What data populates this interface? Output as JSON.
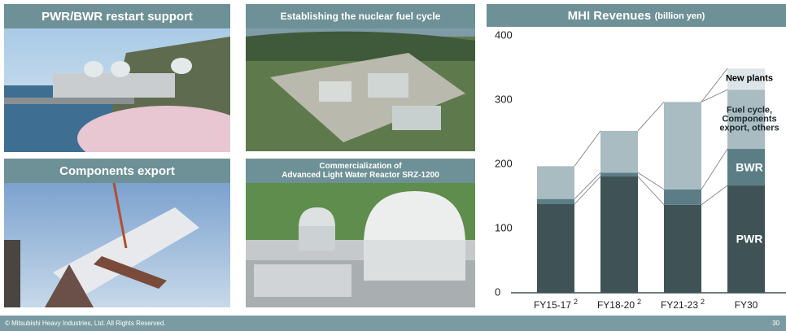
{
  "panels": [
    {
      "title": [
        "PWR/BWR restart support"
      ]
    },
    {
      "title": [
        "Establishing the nuclear fuel cycle"
      ]
    },
    {
      "title": [
        "Components export"
      ]
    },
    {
      "title": [
        "Commercialization of",
        "Advanced Light Water Reactor SRZ-1200"
      ]
    }
  ],
  "footer": {
    "copyright": "© Mitsubishi Heavy Industries, Ltd.  All Rights Reserved.",
    "page": "30"
  },
  "chart_data": {
    "type": "bar",
    "stacked": true,
    "title": "MHI Revenues",
    "subtitle": "(billion yen)",
    "categories": [
      "FY15-17",
      "FY18-20",
      "FY21-23",
      "FY30"
    ],
    "category_notes": [
      "2",
      "2",
      "2",
      null
    ],
    "series": [
      {
        "name": "PWR",
        "color": "#3f5357",
        "label_color": "#ffffff",
        "values": [
          138,
          181,
          137,
          167
        ]
      },
      {
        "name": "BWR",
        "color": "#5b7e86",
        "label_color": "#ffffff",
        "values": [
          8,
          6,
          24,
          57
        ]
      },
      {
        "name": "Fuel cycle, Components export, others",
        "color": "#a9bcc2",
        "label_color": "#1c2a2d",
        "values": [
          51,
          65,
          136,
          92
        ]
      },
      {
        "name": "New plants",
        "color": "#dde5e8",
        "label_color": "#000000",
        "values": [
          null,
          null,
          null,
          33
        ]
      }
    ],
    "ylim": [
      0,
      400
    ],
    "yticks": [
      0,
      100,
      200,
      300,
      400
    ],
    "grid": false
  }
}
